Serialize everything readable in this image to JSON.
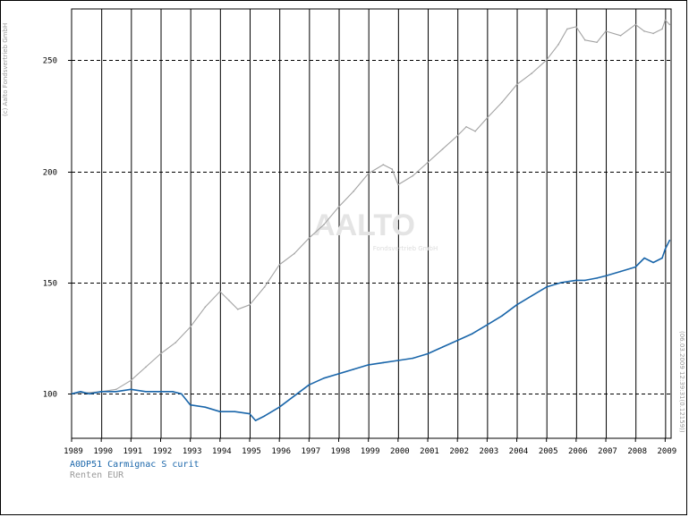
{
  "copyright": "(c) Aalto Fondsvertrieb GmbH",
  "stamp": "(06.03.2009 12:39:31(0.12159))",
  "watermark": {
    "main": "AALTO",
    "sub": "Fondsvertrieb GmbH"
  },
  "legend": {
    "series_1": "A0DP51 Carmignac S curit",
    "series_2": "Renten EUR"
  },
  "colors": {
    "series_1": "#1a66aa",
    "series_2": "#a3a3a3",
    "grid": "#000000"
  },
  "chart_data": {
    "type": "line",
    "title": "",
    "xlabel": "",
    "ylabel": "",
    "xlim": [
      1989.0,
      2009.2
    ],
    "ylim": [
      80,
      273
    ],
    "x_ticks": [
      "1989",
      "1990",
      "1991",
      "1992",
      "1993",
      "1994",
      "1995",
      "1996",
      "1997",
      "1998",
      "1999",
      "2000",
      "2001",
      "2002",
      "2003",
      "2004",
      "2005",
      "2006",
      "2007",
      "2008",
      "2009"
    ],
    "y_ticks": [
      100,
      150,
      200,
      250
    ],
    "grid": {
      "vertical": "solid",
      "horizontal": "dashed"
    },
    "series": [
      {
        "name": "A0DP51 Carmignac S curit",
        "x": [
          1989.0,
          1989.3,
          1989.6,
          1990.0,
          1990.5,
          1991.0,
          1991.5,
          1992.0,
          1992.4,
          1992.7,
          1993.0,
          1993.5,
          1994.0,
          1994.5,
          1995.0,
          1995.2,
          1995.5,
          1996.0,
          1996.5,
          1997.0,
          1997.5,
          1998.0,
          1998.5,
          1999.0,
          1999.5,
          2000.0,
          2000.5,
          2001.0,
          2001.5,
          2002.0,
          2002.5,
          2003.0,
          2003.5,
          2004.0,
          2004.5,
          2005.0,
          2005.5,
          2006.0,
          2006.3,
          2006.7,
          2007.0,
          2007.5,
          2008.0,
          2008.3,
          2008.6,
          2008.9,
          2009.0,
          2009.15
        ],
        "values": [
          100,
          101,
          100,
          101,
          101,
          102,
          101,
          101,
          101,
          100,
          95,
          94,
          92,
          92,
          91,
          88,
          90,
          94,
          99,
          104,
          107,
          109,
          111,
          113,
          114,
          115,
          116,
          118,
          121,
          124,
          127,
          131,
          135,
          140,
          144,
          148,
          150,
          151,
          151,
          152,
          153,
          155,
          157,
          161,
          159,
          161,
          165,
          169
        ]
      },
      {
        "name": "Renten EUR",
        "x": [
          1989.0,
          1990.0,
          1990.5,
          1991.0,
          1991.5,
          1992.0,
          1992.5,
          1993.0,
          1993.5,
          1994.0,
          1994.3,
          1994.6,
          1995.0,
          1995.5,
          1996.0,
          1996.5,
          1997.0,
          1997.5,
          1998.0,
          1998.5,
          1999.0,
          1999.5,
          1999.8,
          2000.0,
          2000.5,
          2001.0,
          2001.5,
          2002.0,
          2002.3,
          2002.6,
          2003.0,
          2003.5,
          2004.0,
          2004.5,
          2005.0,
          2005.4,
          2005.7,
          2006.0,
          2006.3,
          2006.7,
          2007.0,
          2007.5,
          2008.0,
          2008.3,
          2008.6,
          2008.9,
          2009.0,
          2009.15
        ],
        "values": [
          100,
          101,
          102,
          106,
          112,
          118,
          123,
          130,
          139,
          146,
          142,
          138,
          140,
          148,
          158,
          163,
          170,
          176,
          184,
          191,
          199,
          203,
          201,
          194,
          198,
          204,
          210,
          216,
          220,
          218,
          224,
          231,
          239,
          244,
          250,
          257,
          264,
          265,
          259,
          258,
          263,
          261,
          266,
          263,
          262,
          264,
          268,
          266
        ]
      }
    ]
  }
}
